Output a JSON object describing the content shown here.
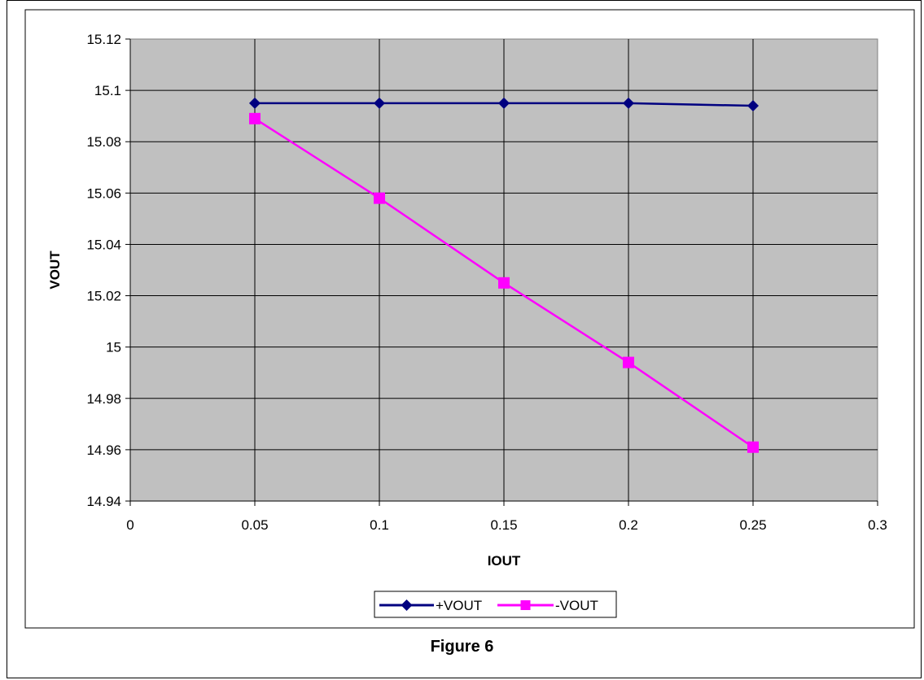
{
  "caption": "Figure 6",
  "chart_data": {
    "type": "line",
    "xlabel": "IOUT",
    "ylabel": "VOUT",
    "xlim": [
      0,
      0.3
    ],
    "ylim": [
      14.94,
      15.12
    ],
    "x_ticks": [
      "0",
      "0.05",
      "0.1",
      "0.15",
      "0.2",
      "0.25",
      "0.3"
    ],
    "y_ticks": [
      "15.12",
      "15.1",
      "15.08",
      "15.06",
      "15.04",
      "15.02",
      "15",
      "14.98",
      "14.96",
      "14.94"
    ],
    "grid": true,
    "legend_position": "bottom",
    "plot_background": "#c0c0c0",
    "series": [
      {
        "name": "+VOUT",
        "color": "#000080",
        "marker": "diamond",
        "x": [
          0.05,
          0.1,
          0.15,
          0.2,
          0.25
        ],
        "y": [
          15.095,
          15.095,
          15.095,
          15.095,
          15.094
        ]
      },
      {
        "name": "-VOUT",
        "color": "#ff00ff",
        "marker": "square",
        "x": [
          0.05,
          0.1,
          0.15,
          0.2,
          0.25
        ],
        "y": [
          15.089,
          15.058,
          15.025,
          14.994,
          14.961
        ]
      }
    ]
  }
}
